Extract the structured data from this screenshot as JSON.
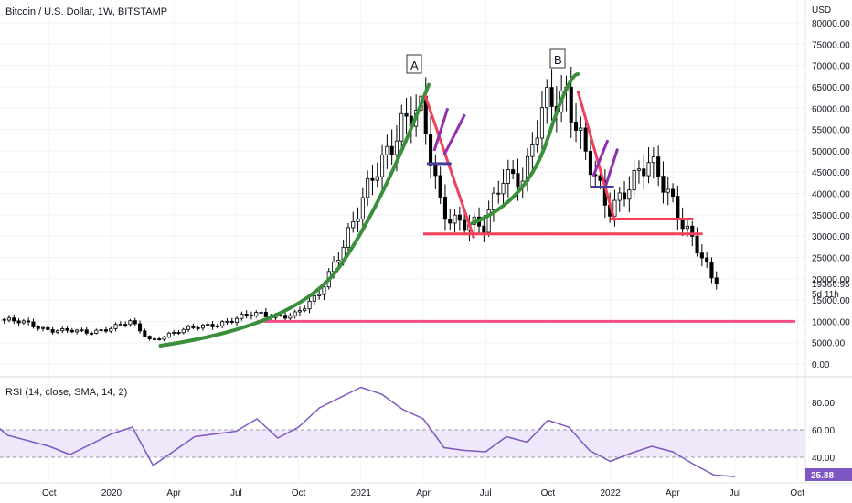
{
  "header": {
    "title": "Bitcoin / U.S. Dollar, 1W, BITSTAMP"
  },
  "price_axis": {
    "currency": "USD",
    "ticks": [
      "80000.00",
      "75000.00",
      "70000.00",
      "65000.00",
      "60000.00",
      "55000.00",
      "50000.00",
      "45000.00",
      "40000.00",
      "35000.00",
      "30000.00",
      "25000.00",
      "20000.00",
      "15000.00",
      "10000.00",
      "5000.00",
      "0.00"
    ],
    "last_price_label": "19366.95",
    "countdown_label": "5d 11h"
  },
  "rsi_panel": {
    "title": "RSI (14, close, SMA, 14, 2)",
    "ticks": [
      "80.00",
      "60.00",
      "40.00"
    ],
    "last_value_label": "25.88"
  },
  "time_axis": {
    "labels": [
      "Oct",
      "2020",
      "Apr",
      "Jul",
      "Oct",
      "2021",
      "Apr",
      "Jul",
      "Oct",
      "2022",
      "Apr",
      "Jul",
      "Oct"
    ]
  },
  "annotations": {
    "label_a": "A",
    "label_b": "B"
  },
  "colors": {
    "candle_up": "#ffffff",
    "candle_down": "#000000",
    "curve": "#3a8f3a",
    "trendline": "#f0405a",
    "support": "#f0405a",
    "low_support": "#f04d8a",
    "flag": "#8e2fb0",
    "flag_base": "#4a3a9a",
    "rsi_line": "#7e57c2",
    "rsi_band": "#efe8fa"
  },
  "chart_data": {
    "type": "line",
    "title": "Bitcoin / U.S. Dollar, 1W, BITSTAMP",
    "price_range": [
      0,
      80000
    ],
    "rsi_range": [
      0,
      100
    ],
    "rsi_levels": [
      60,
      40
    ],
    "x_labels": [
      "Oct",
      "2020",
      "Apr",
      "Jul",
      "Oct",
      "2021",
      "Apr",
      "Jul",
      "Oct",
      "2022",
      "Apr",
      "Jul",
      "Oct"
    ],
    "price_path": [
      [
        "2019-07",
        11000
      ],
      [
        "2019-09",
        9500
      ],
      [
        "2019-10",
        8200
      ],
      [
        "2019-12",
        7300
      ],
      [
        "2020-02",
        9800
      ],
      [
        "2020-03",
        5500
      ],
      [
        "2020-04",
        7300
      ],
      [
        "2020-06",
        9300
      ],
      [
        "2020-08",
        11600
      ],
      [
        "2020-10",
        11500
      ],
      [
        "2020-11",
        15500
      ],
      [
        "2020-12",
        26000
      ],
      [
        "2021-01",
        35000
      ],
      [
        "2021-02",
        47000
      ],
      [
        "2021-03",
        57000
      ],
      [
        "2021-04",
        58000
      ],
      [
        "2021-05",
        37000
      ],
      [
        "2021-06",
        33000
      ],
      [
        "2021-07",
        31000
      ],
      [
        "2021-08",
        46000
      ],
      [
        "2021-09",
        43000
      ],
      [
        "2021-10",
        61000
      ],
      [
        "2021-11",
        65000
      ],
      [
        "2021-12",
        47000
      ],
      [
        "2022-01",
        36000
      ],
      [
        "2022-02",
        43000
      ],
      [
        "2022-03",
        46000
      ],
      [
        "2022-04",
        40000
      ],
      [
        "2022-05",
        30000
      ],
      [
        "2022-06",
        19500
      ]
    ],
    "rsi_path": [
      [
        "2019-07",
        69
      ],
      [
        "2019-08",
        56
      ],
      [
        "2019-10",
        48
      ],
      [
        "2019-11",
        42
      ],
      [
        "2020-01",
        57
      ],
      [
        "2020-02",
        62
      ],
      [
        "2020-03",
        34
      ],
      [
        "2020-05",
        55
      ],
      [
        "2020-07",
        59
      ],
      [
        "2020-08",
        68
      ],
      [
        "2020-09",
        54
      ],
      [
        "2020-10",
        62
      ],
      [
        "2020-11",
        76
      ],
      [
        "2021-01",
        91
      ],
      [
        "2021-02",
        86
      ],
      [
        "2021-03",
        75
      ],
      [
        "2021-04",
        68
      ],
      [
        "2021-05",
        47
      ],
      [
        "2021-06",
        45
      ],
      [
        "2021-07",
        44
      ],
      [
        "2021-08",
        55
      ],
      [
        "2021-09",
        51
      ],
      [
        "2021-10",
        67
      ],
      [
        "2021-11",
        62
      ],
      [
        "2021-12",
        45
      ],
      [
        "2022-01",
        37
      ],
      [
        "2022-02",
        43
      ],
      [
        "2022-03",
        48
      ],
      [
        "2022-04",
        44
      ],
      [
        "2022-05",
        35
      ],
      [
        "2022-06",
        27
      ],
      [
        "2022-07",
        25.88
      ]
    ],
    "support_levels": [
      30000,
      10000
    ],
    "peaks": [
      {
        "label": "A",
        "date": "2021-04",
        "price": 64800
      },
      {
        "label": "B",
        "date": "2021-11",
        "price": 69000
      }
    ]
  }
}
